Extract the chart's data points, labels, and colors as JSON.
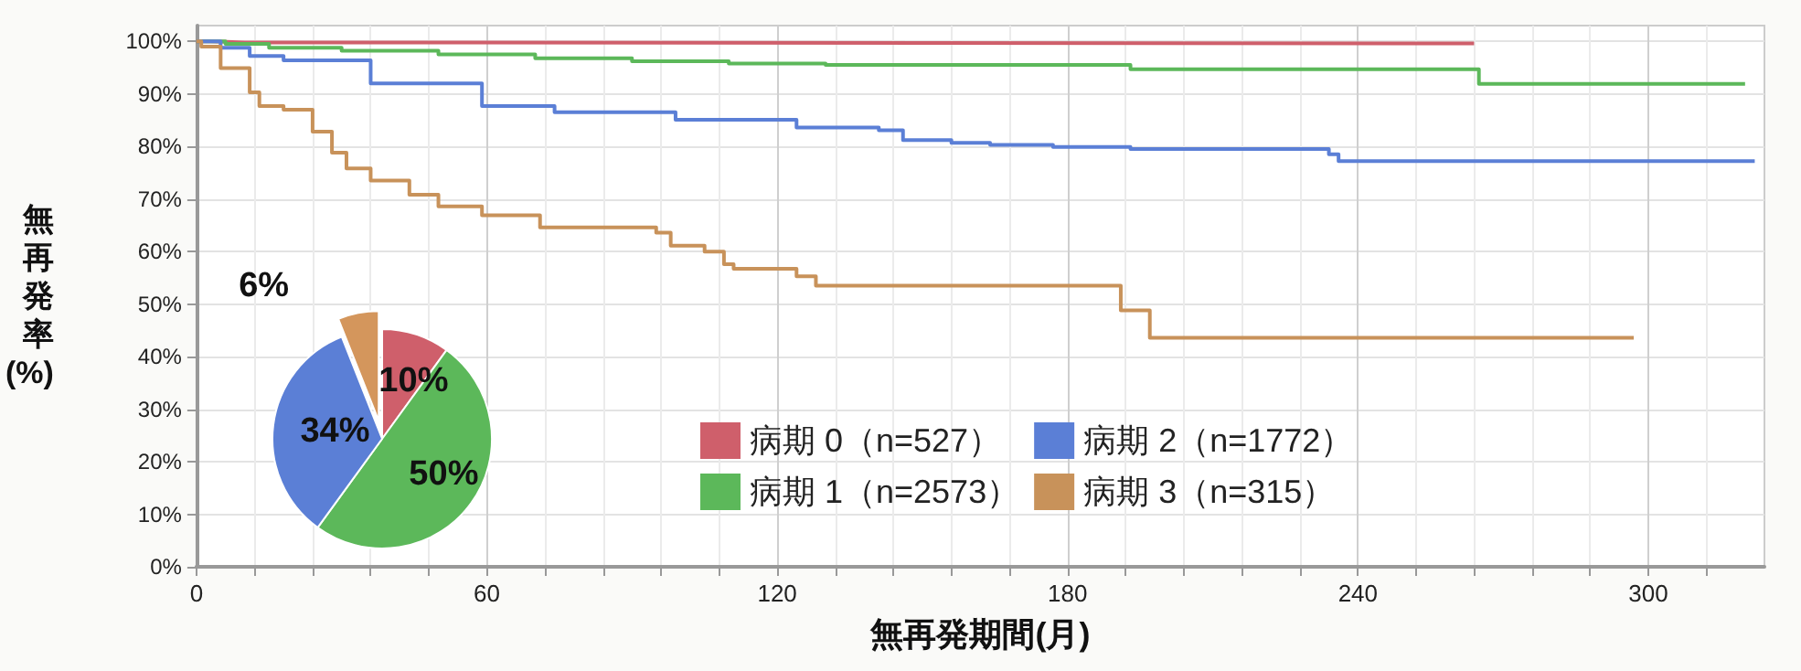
{
  "chart_data": [
    {
      "type": "step",
      "xlabel": "無再発期間(月)",
      "ylabel": "無再発率(%)",
      "xlim": [
        0,
        324
      ],
      "ylim": [
        0,
        103
      ],
      "xticks": [
        0,
        {
          "value": 12,
          "label": null
        },
        {
          "value": 24,
          "label": null
        },
        {
          "value": 36,
          "label": null
        },
        {
          "value": 48,
          "label": null
        },
        60,
        {
          "value": 72,
          "label": null
        },
        {
          "value": 84,
          "label": null
        },
        {
          "value": 96,
          "label": null
        },
        {
          "value": 108,
          "label": null
        },
        120,
        {
          "value": 132,
          "label": null
        },
        {
          "value": 144,
          "label": null
        },
        {
          "value": 156,
          "label": null
        },
        {
          "value": 168,
          "label": null
        },
        180,
        {
          "value": 192,
          "label": null
        },
        {
          "value": 204,
          "label": null
        },
        {
          "value": 216,
          "label": null
        },
        {
          "value": 228,
          "label": null
        },
        240,
        {
          "value": 252,
          "label": null
        },
        {
          "value": 264,
          "label": null
        },
        {
          "value": 276,
          "label": null
        },
        {
          "value": 288,
          "label": null
        },
        300,
        {
          "value": 312,
          "label": null
        }
      ],
      "yticks": [
        {
          "value": 0,
          "label": "0%"
        },
        {
          "value": 10,
          "label": "10%"
        },
        {
          "value": 20,
          "label": "20%"
        },
        {
          "value": 30,
          "label": "30%"
        },
        {
          "value": 40,
          "label": "40%"
        },
        {
          "value": 50,
          "label": "50%"
        },
        {
          "value": 60,
          "label": "60%"
        },
        {
          "value": 70,
          "label": "70%"
        },
        {
          "value": 80,
          "label": "80%"
        },
        {
          "value": 90,
          "label": "90%"
        },
        {
          "value": 100,
          "label": "100%"
        }
      ],
      "grid": true,
      "legend": "bottom",
      "series": [
        {
          "name": "病期 0（n=527）",
          "color": "#cf5f6b",
          "x": [
            0,
            3,
            10,
            264
          ],
          "values": [
            100,
            99.8,
            99.6,
            99.6
          ]
        },
        {
          "name": "病期 1（n=2573）",
          "color": "#5cb85a",
          "x": [
            0,
            6,
            15,
            30,
            50,
            70,
            90,
            110,
            130,
            193,
            265,
            320
          ],
          "values": [
            100,
            99.5,
            98.8,
            98.2,
            97.5,
            96.8,
            96.2,
            95.8,
            95.5,
            94.7,
            91.9,
            91.9
          ]
        },
        {
          "name": "病期 2（n=1772）",
          "color": "#5b7fd6",
          "x": [
            0,
            5,
            11,
            18,
            36,
            59,
            74,
            99,
            124,
            141,
            146,
            156,
            164,
            177,
            193,
            234,
            236,
            322
          ],
          "values": [
            100,
            98.8,
            97.2,
            96.4,
            92,
            87.7,
            86.5,
            85.1,
            83.6,
            83.1,
            81.2,
            80.7,
            80.3,
            79.9,
            79.5,
            78.5,
            77.2,
            77.2
          ]
        },
        {
          "name": "病期 3（n=315）",
          "color": "#c8925a",
          "x": [
            0,
            1,
            5,
            11,
            13,
            18,
            24,
            28,
            31,
            36,
            44,
            50,
            59,
            71,
            95,
            98,
            105,
            109,
            111,
            124,
            128,
            191,
            197,
            297
          ],
          "values": [
            100,
            99,
            94.9,
            90.3,
            87.7,
            87,
            82.8,
            78.8,
            75.8,
            73.5,
            70.8,
            68.6,
            66.9,
            64.6,
            63.6,
            61.1,
            60,
            57.6,
            56.7,
            55.3,
            53.5,
            48.8,
            43.6,
            43.6
          ]
        }
      ]
    },
    {
      "type": "pie",
      "categories": [
        null,
        null,
        null,
        null
      ],
      "values": [
        10,
        50,
        34,
        6
      ],
      "colors": [
        "#cf5f6b",
        "#5cb85a",
        "#5b7fd6",
        "#d4965c"
      ],
      "value_labels": [
        "10%",
        "50%",
        "34%",
        "6%"
      ]
    }
  ]
}
